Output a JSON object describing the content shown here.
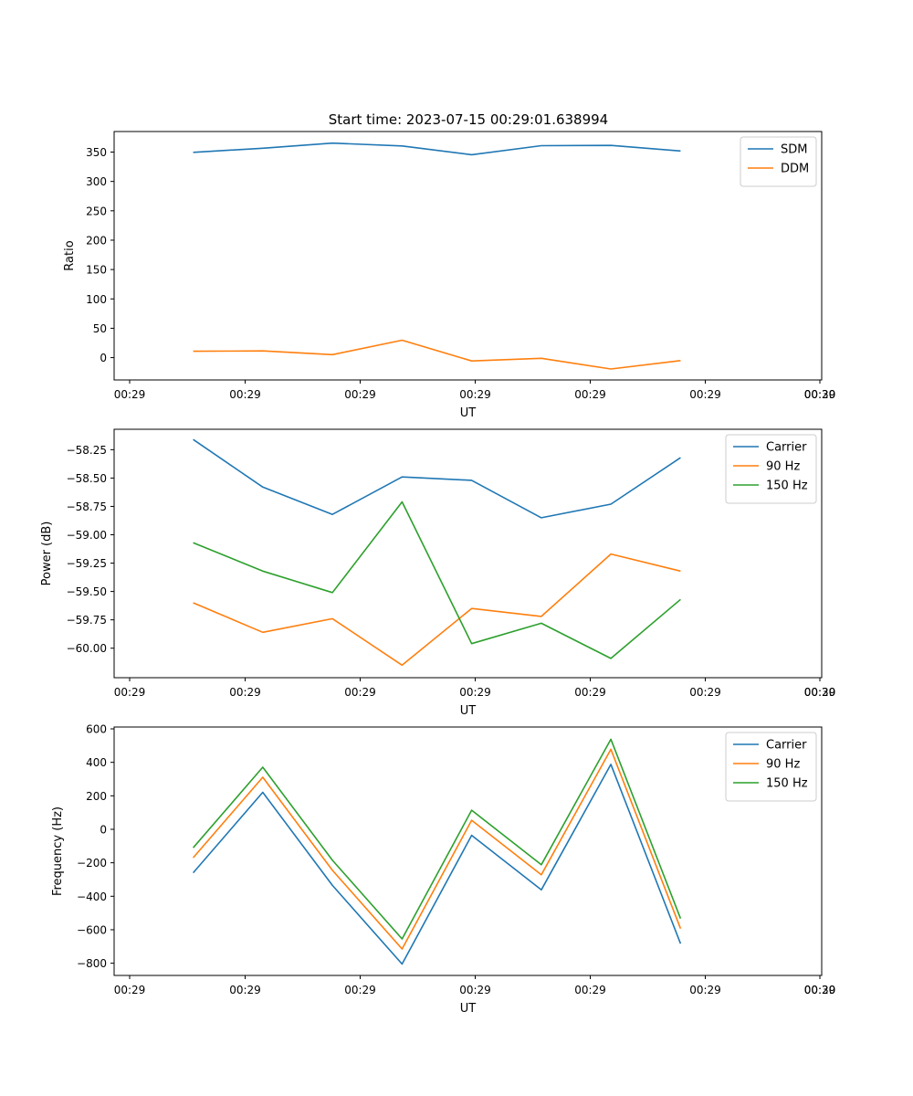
{
  "title": "Start time: 2023-07-15 00:29:01.638994",
  "colors": {
    "c0": "#1f77b4",
    "c1": "#ff7f0e",
    "c2": "#2ca02c"
  },
  "chart_data": [
    {
      "type": "line",
      "xlabel": "UT",
      "ylabel": "Ratio",
      "x_ticklabels": [
        "00:29",
        "00:29",
        "00:29",
        "00:29",
        "00:29",
        "00:29",
        "00:29",
        "00:30"
      ],
      "ylim": [
        -38,
        385
      ],
      "yticks": [
        0,
        50,
        100,
        150,
        200,
        250,
        300,
        350
      ],
      "ytick_labels": [
        "0",
        "50",
        "100",
        "150",
        "200",
        "250",
        "300",
        "350"
      ],
      "legend_position": "top-right",
      "x": [
        1,
        2,
        3,
        4,
        5,
        6,
        7,
        8
      ],
      "series": [
        {
          "name": "SDM",
          "color": "#1f77b4",
          "values": [
            349.5,
            356.5,
            365.2,
            360.4,
            345.5,
            360.9,
            361.4,
            351.9
          ]
        },
        {
          "name": "DDM",
          "color": "#ff7f0e",
          "values": [
            10.8,
            11.4,
            5.1,
            29.7,
            -5.6,
            -1.1,
            -19.4,
            -5.1
          ]
        }
      ]
    },
    {
      "type": "line",
      "xlabel": "UT",
      "ylabel": "Power (dB)",
      "x_ticklabels": [
        "00:29",
        "00:29",
        "00:29",
        "00:29",
        "00:29",
        "00:29",
        "00:29",
        "00:30"
      ],
      "ylim": [
        -60.26,
        -58.07
      ],
      "yticks": [
        -60.0,
        -59.75,
        -59.5,
        -59.25,
        -59.0,
        -58.75,
        -58.5,
        -58.25
      ],
      "ytick_labels": [
        "−60.00",
        "−59.75",
        "−59.50",
        "−59.25",
        "−59.00",
        "−58.75",
        "−58.50",
        "−58.25"
      ],
      "legend_position": "top-right",
      "x": [
        1,
        2,
        3,
        4,
        5,
        6,
        7,
        8
      ],
      "series": [
        {
          "name": "Carrier",
          "color": "#1f77b4",
          "values": [
            -58.16,
            -58.58,
            -58.82,
            -58.49,
            -58.52,
            -58.85,
            -58.73,
            -58.32
          ]
        },
        {
          "name": "90 Hz",
          "color": "#ff7f0e",
          "values": [
            -59.6,
            -59.86,
            -59.74,
            -60.15,
            -59.65,
            -59.72,
            -59.17,
            -59.32
          ]
        },
        {
          "name": "150 Hz",
          "color": "#2ca02c",
          "values": [
            -59.07,
            -59.32,
            -59.51,
            -58.71,
            -59.96,
            -59.78,
            -60.09,
            -59.57
          ]
        }
      ]
    },
    {
      "type": "line",
      "xlabel": "UT",
      "ylabel": "Frequency (Hz)",
      "x_ticklabels": [
        "00:29",
        "00:29",
        "00:29",
        "00:29",
        "00:29",
        "00:29",
        "00:29",
        "00:30"
      ],
      "ylim": [
        -873,
        611
      ],
      "yticks": [
        -800,
        -600,
        -400,
        -200,
        0,
        200,
        400,
        600
      ],
      "ytick_labels": [
        "−800",
        "−600",
        "−400",
        "−200",
        "0",
        "200",
        "400",
        "600"
      ],
      "legend_position": "top-right",
      "x": [
        1,
        2,
        3,
        4,
        5,
        6,
        7,
        8
      ],
      "series": [
        {
          "name": "Carrier",
          "color": "#1f77b4",
          "values": [
            -260,
            221,
            -335,
            -805,
            -36,
            -362,
            388,
            -683
          ]
        },
        {
          "name": "90 Hz",
          "color": "#ff7f0e",
          "values": [
            -170,
            311,
            -245,
            -715,
            54,
            -272,
            478,
            -593
          ]
        },
        {
          "name": "150 Hz",
          "color": "#2ca02c",
          "values": [
            -110,
            371,
            -185,
            -655,
            114,
            -212,
            538,
            -533
          ]
        }
      ]
    }
  ]
}
